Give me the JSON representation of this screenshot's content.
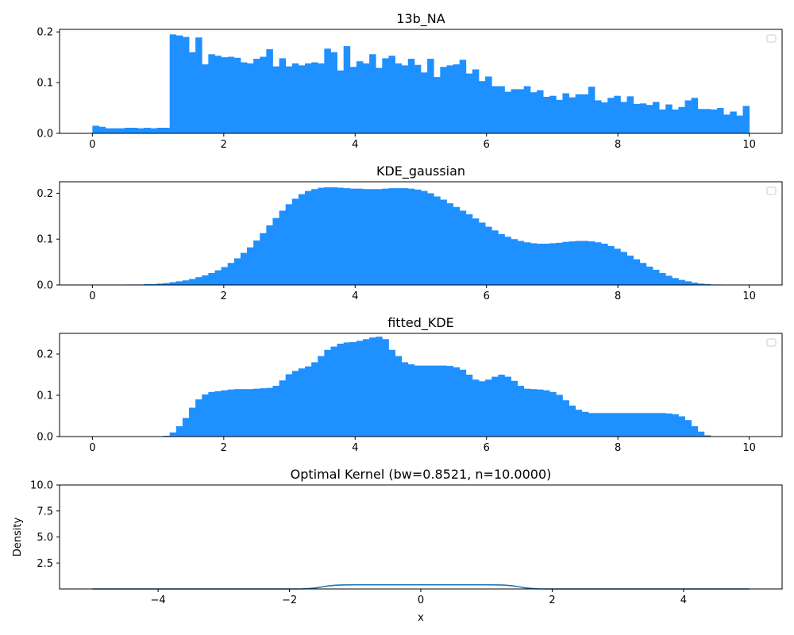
{
  "figure": {
    "background": "#ffffff"
  },
  "colors": {
    "bar": "#1e90ff",
    "line": "#1f77b4",
    "axis": "#000000",
    "legend_box": "#cccccc"
  },
  "chart_data": [
    {
      "type": "bar",
      "title": "13b_NA",
      "xlabel": "",
      "ylabel": "",
      "xlim": [
        -0.5,
        10.5
      ],
      "ylim": [
        0,
        0.205
      ],
      "xticks": [
        0,
        2,
        4,
        6,
        8,
        10
      ],
      "xtick_labels": [
        "0",
        "2",
        "4",
        "6",
        "8",
        "10"
      ],
      "yticks": [
        0.0,
        0.1,
        0.2
      ],
      "ytick_labels": [
        "0.0",
        "0.1",
        "0.2"
      ],
      "grid": false,
      "legend": "top-right (empty)",
      "bin_start": 0,
      "bin_end": 10,
      "values": [
        0.015,
        0.013,
        0.01,
        0.01,
        0.01,
        0.011,
        0.011,
        0.01,
        0.011,
        0.01,
        0.011,
        0.011,
        0.195,
        0.193,
        0.19,
        0.16,
        0.189,
        0.136,
        0.156,
        0.153,
        0.15,
        0.151,
        0.149,
        0.14,
        0.138,
        0.147,
        0.151,
        0.166,
        0.132,
        0.148,
        0.132,
        0.138,
        0.134,
        0.138,
        0.14,
        0.138,
        0.167,
        0.16,
        0.124,
        0.172,
        0.131,
        0.142,
        0.138,
        0.156,
        0.129,
        0.148,
        0.153,
        0.138,
        0.134,
        0.147,
        0.135,
        0.12,
        0.147,
        0.111,
        0.131,
        0.134,
        0.136,
        0.145,
        0.118,
        0.126,
        0.103,
        0.112,
        0.093,
        0.093,
        0.082,
        0.087,
        0.087,
        0.093,
        0.081,
        0.085,
        0.072,
        0.074,
        0.066,
        0.079,
        0.071,
        0.077,
        0.077,
        0.092,
        0.065,
        0.061,
        0.07,
        0.074,
        0.062,
        0.073,
        0.058,
        0.059,
        0.056,
        0.062,
        0.047,
        0.057,
        0.047,
        0.052,
        0.065,
        0.07,
        0.048,
        0.048,
        0.047,
        0.05,
        0.037,
        0.043,
        0.035,
        0.054
      ]
    },
    {
      "type": "bar",
      "title": "KDE_gaussian",
      "xlabel": "",
      "ylabel": "",
      "xlim": [
        -0.5,
        10.5
      ],
      "ylim": [
        0,
        0.225
      ],
      "xticks": [
        0,
        2,
        4,
        6,
        8,
        10
      ],
      "xtick_labels": [
        "0",
        "2",
        "4",
        "6",
        "8",
        "10"
      ],
      "yticks": [
        0.0,
        0.1,
        0.2
      ],
      "ytick_labels": [
        "0.0",
        "0.1",
        "0.2"
      ],
      "grid": false,
      "legend": "top-right (empty)",
      "bin_start": 0,
      "bin_end": 10,
      "values": [
        0.0,
        0.0,
        0.0,
        0.0,
        0.0,
        0.001,
        0.001,
        0.001,
        0.002,
        0.002,
        0.003,
        0.004,
        0.006,
        0.008,
        0.01,
        0.013,
        0.017,
        0.021,
        0.026,
        0.032,
        0.039,
        0.048,
        0.058,
        0.07,
        0.082,
        0.097,
        0.113,
        0.13,
        0.146,
        0.162,
        0.176,
        0.188,
        0.198,
        0.205,
        0.209,
        0.212,
        0.213,
        0.213,
        0.212,
        0.211,
        0.21,
        0.21,
        0.209,
        0.209,
        0.209,
        0.21,
        0.211,
        0.211,
        0.211,
        0.21,
        0.208,
        0.205,
        0.2,
        0.193,
        0.186,
        0.178,
        0.17,
        0.162,
        0.154,
        0.145,
        0.136,
        0.127,
        0.119,
        0.111,
        0.105,
        0.1,
        0.096,
        0.093,
        0.091,
        0.09,
        0.09,
        0.091,
        0.092,
        0.094,
        0.095,
        0.096,
        0.096,
        0.095,
        0.093,
        0.09,
        0.085,
        0.079,
        0.072,
        0.064,
        0.056,
        0.048,
        0.04,
        0.033,
        0.026,
        0.02,
        0.015,
        0.011,
        0.008,
        0.005,
        0.003,
        0.002,
        0.001,
        0.001,
        0.0,
        0.0,
        0.0,
        0.0
      ]
    },
    {
      "type": "bar",
      "title": "fitted_KDE",
      "xlabel": "",
      "ylabel": "",
      "xlim": [
        -0.5,
        10.5
      ],
      "ylim": [
        0,
        0.25
      ],
      "xticks": [
        0,
        2,
        4,
        6,
        8,
        10
      ],
      "xtick_labels": [
        "0",
        "2",
        "4",
        "6",
        "8",
        "10"
      ],
      "yticks": [
        0.0,
        0.1,
        0.2
      ],
      "ytick_labels": [
        "0.0",
        "0.1",
        "0.2"
      ],
      "grid": false,
      "legend": "top-right (empty)",
      "bin_start": 0,
      "bin_end": 10,
      "values": [
        0.0,
        0.0,
        0.0,
        0.0,
        0.0,
        0.0,
        0.0,
        0.0,
        0.0,
        0.0,
        0.0,
        0.002,
        0.01,
        0.025,
        0.045,
        0.07,
        0.09,
        0.102,
        0.108,
        0.11,
        0.112,
        0.114,
        0.115,
        0.115,
        0.115,
        0.116,
        0.117,
        0.118,
        0.123,
        0.136,
        0.151,
        0.159,
        0.165,
        0.17,
        0.18,
        0.195,
        0.21,
        0.218,
        0.225,
        0.228,
        0.229,
        0.232,
        0.236,
        0.24,
        0.242,
        0.236,
        0.21,
        0.195,
        0.18,
        0.175,
        0.172,
        0.172,
        0.172,
        0.172,
        0.172,
        0.171,
        0.168,
        0.162,
        0.15,
        0.138,
        0.134,
        0.138,
        0.145,
        0.15,
        0.145,
        0.135,
        0.123,
        0.116,
        0.115,
        0.114,
        0.112,
        0.108,
        0.101,
        0.088,
        0.075,
        0.065,
        0.06,
        0.057,
        0.057,
        0.057,
        0.057,
        0.057,
        0.057,
        0.057,
        0.057,
        0.057,
        0.057,
        0.057,
        0.057,
        0.056,
        0.054,
        0.049,
        0.04,
        0.025,
        0.012,
        0.003,
        0.0,
        0.0,
        0.0,
        0.0,
        0.0,
        0.0
      ]
    },
    {
      "type": "line",
      "title": "Optimal Kernel (bw=0.8521, n=10.0000)",
      "xlabel": "x",
      "ylabel": "Density",
      "xlim": [
        -5.5,
        5.5
      ],
      "ylim": [
        0.0,
        10.0
      ],
      "xticks": [
        -4,
        -2,
        0,
        2,
        4
      ],
      "xtick_labels": [
        "−4",
        "−2",
        "0",
        "2",
        "4"
      ],
      "yticks": [
        2.5,
        5.0,
        7.5,
        10.0
      ],
      "ytick_labels": [
        "2.5",
        "5.0",
        "7.5",
        "10.0"
      ],
      "grid": false,
      "series": [
        {
          "x": [
            -5.0,
            -2.0,
            -1.8,
            -1.7,
            -1.6,
            -1.5,
            -1.4,
            -1.3,
            -1.2,
            -1.0,
            -0.5,
            0.0,
            0.5,
            1.0,
            1.2,
            1.3,
            1.4,
            1.5,
            1.6,
            1.7,
            1.8,
            2.0,
            5.0
          ],
          "y": [
            0.0,
            0.0,
            0.01,
            0.04,
            0.1,
            0.2,
            0.3,
            0.36,
            0.39,
            0.4,
            0.4,
            0.4,
            0.4,
            0.4,
            0.39,
            0.36,
            0.3,
            0.2,
            0.1,
            0.04,
            0.01,
            0.0,
            0.0
          ]
        }
      ]
    }
  ]
}
